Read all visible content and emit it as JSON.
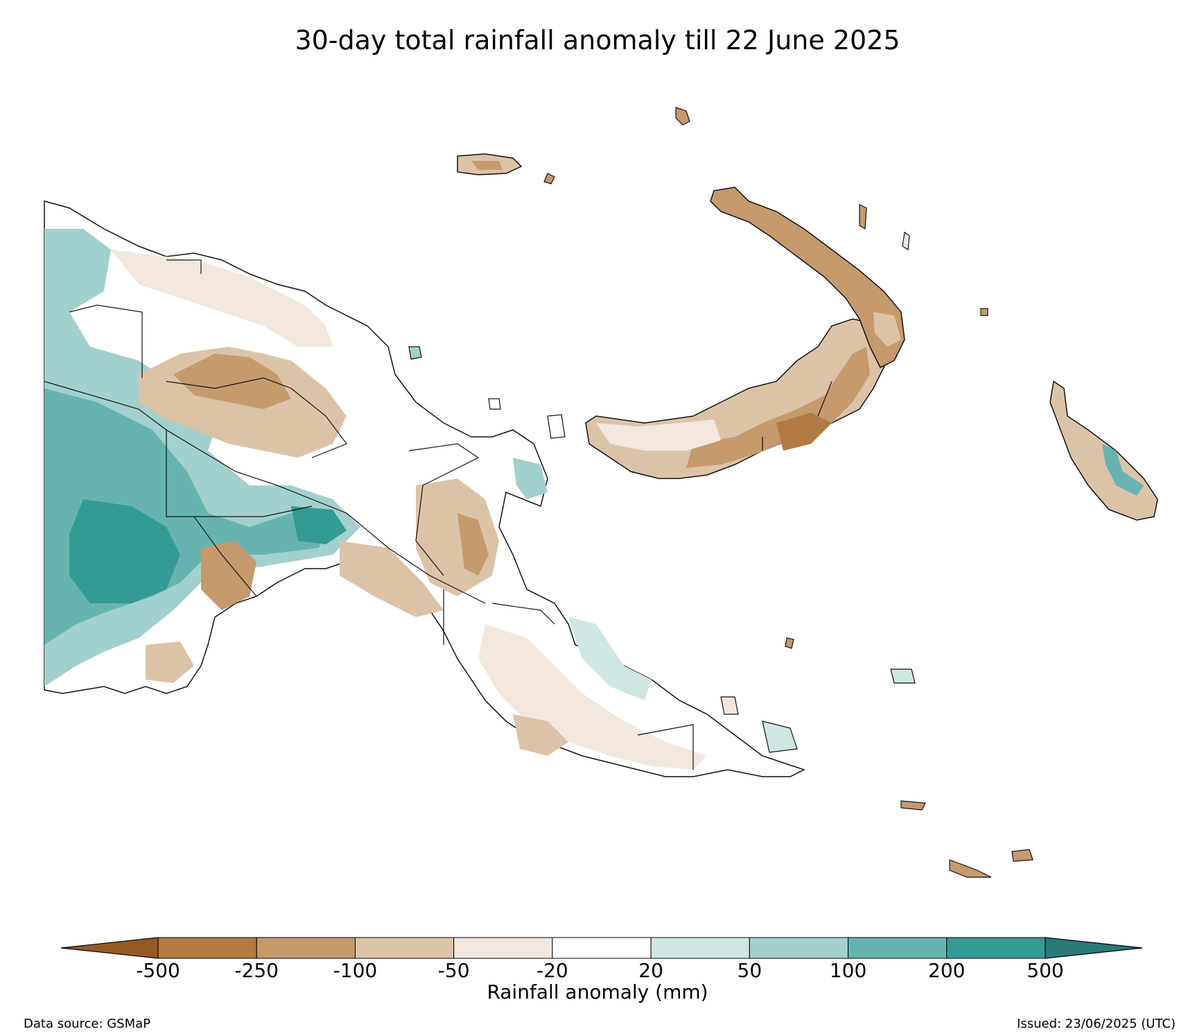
{
  "title": "30-day total rainfall anomaly till 22 June 2025",
  "colorbar": {
    "label": "Rainfall anomaly (mm)",
    "ticks": [
      "-500",
      "-250",
      "-100",
      "-50",
      "-20",
      "20",
      "50",
      "100",
      "200",
      "500"
    ],
    "class_colors": [
      "#955a24",
      "#b17a42",
      "#c59a6d",
      "#dcc3a8",
      "#f1e7dd",
      "#ffffff",
      "#cfe6e4",
      "#a2d0cd",
      "#66b4b0",
      "#349a96",
      "#277a77"
    ],
    "extend": "both"
  },
  "map": {
    "region": "Papua New Guinea",
    "legend_placement": "bottom"
  },
  "footer": {
    "data_source": "Data source: GSMaP",
    "issued": "Issued: 23/06/2025 (UTC)"
  }
}
